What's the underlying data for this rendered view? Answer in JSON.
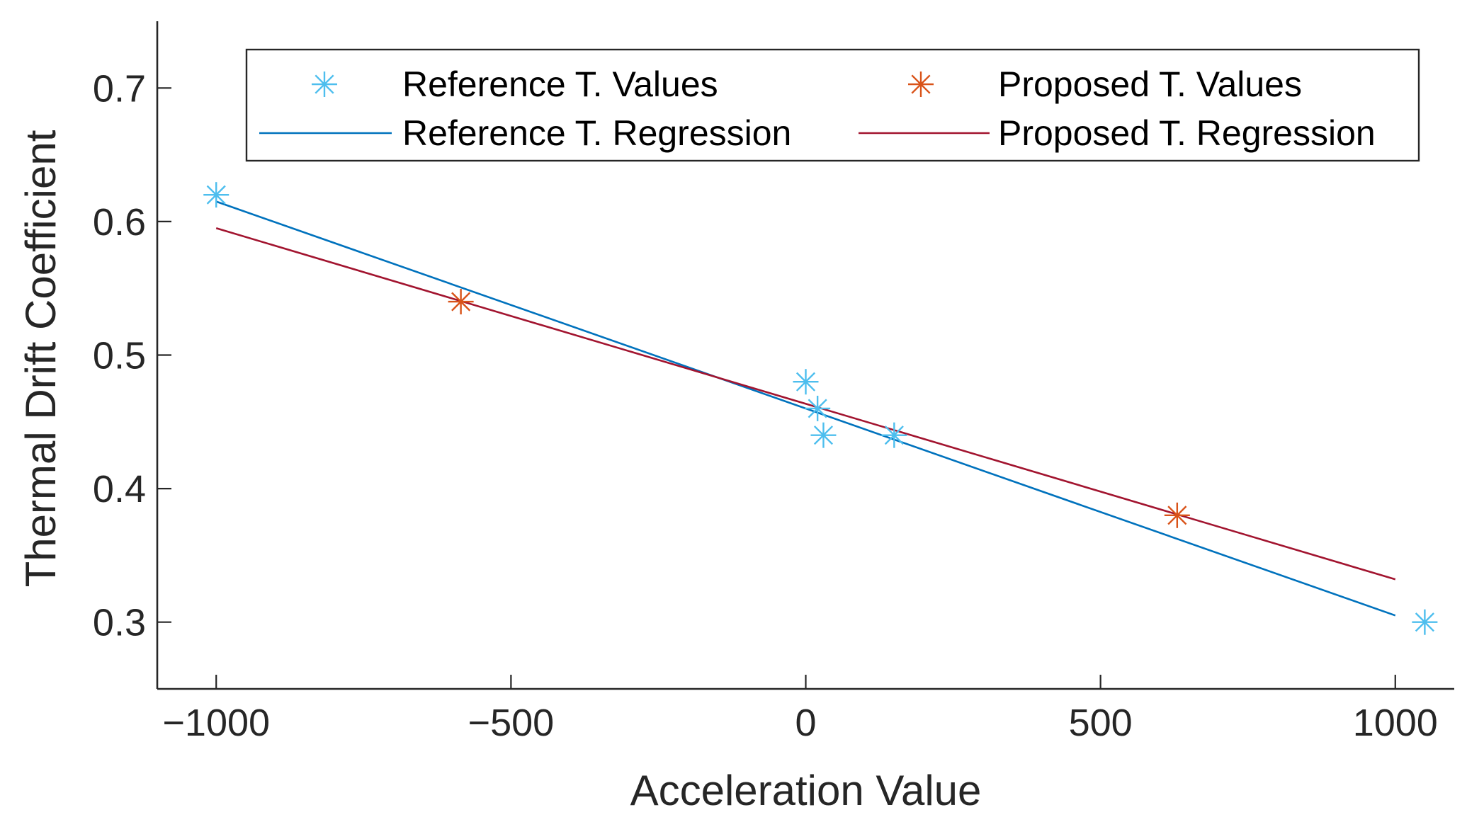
{
  "chart_data": {
    "type": "scatter",
    "title": "",
    "xlabel": "Acceleration Value",
    "ylabel": "Thermal Drift Coefficient",
    "xlim": [
      -1100,
      1100
    ],
    "ylim": [
      0.25,
      0.75
    ],
    "xticks": [
      -1000,
      -500,
      0,
      500,
      1000
    ],
    "xtick_labels": [
      "−1000",
      "−500",
      "0",
      "500",
      "1000"
    ],
    "yticks": [
      0.3,
      0.4,
      0.5,
      0.6,
      0.7
    ],
    "ytick_labels": [
      "0.3",
      "0.4",
      "0.5",
      "0.6",
      "0.7"
    ],
    "grid": false,
    "legend_position": "top",
    "series": [
      {
        "name": "Reference T. Values",
        "kind": "markers",
        "marker": "asterisk",
        "color": "#4DBEEE",
        "points": [
          [
            -1000,
            0.62
          ],
          [
            0,
            0.48
          ],
          [
            20,
            0.46
          ],
          [
            30,
            0.44
          ],
          [
            150,
            0.44
          ],
          [
            1050,
            0.3
          ]
        ]
      },
      {
        "name": "Proposed T. Values",
        "kind": "markers",
        "marker": "asterisk",
        "color": "#D95319",
        "points": [
          [
            -585,
            0.54
          ],
          [
            630,
            0.38
          ]
        ]
      },
      {
        "name": "Reference T. Regression",
        "kind": "line",
        "color": "#0072BD",
        "points": [
          [
            -1000,
            0.615
          ],
          [
            1000,
            0.305
          ]
        ]
      },
      {
        "name": "Proposed T. Regression",
        "kind": "line",
        "color": "#A2142F",
        "points": [
          [
            -1000,
            0.595
          ],
          [
            1000,
            0.332
          ]
        ]
      }
    ]
  }
}
